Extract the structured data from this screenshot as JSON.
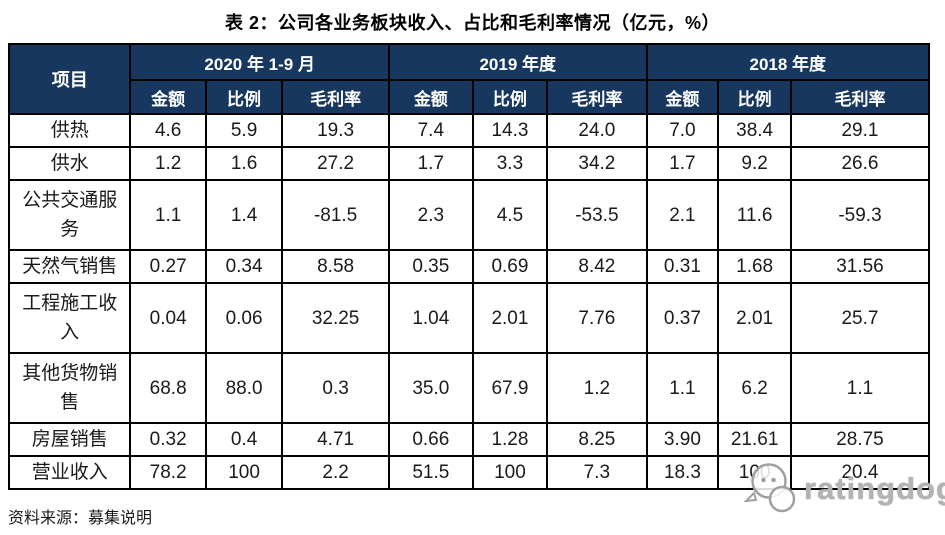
{
  "title": "表 2：公司各业务板块收入、占比和毛利率情况（亿元，%）",
  "table": {
    "corner_label": "项目",
    "groups": [
      {
        "label": "2020 年 1-9 月",
        "columns": [
          "金额",
          "比例",
          "毛利率"
        ]
      },
      {
        "label": "2019 年度",
        "columns": [
          "金额",
          "比例",
          "毛利率"
        ]
      },
      {
        "label": "2018 年度",
        "columns": [
          "金额",
          "比例",
          "毛利率"
        ]
      }
    ],
    "rows": [
      {
        "label": "供热",
        "values": [
          "4.6",
          "5.9",
          "19.3",
          "7.4",
          "14.3",
          "24.0",
          "7.0",
          "38.4",
          "29.1"
        ]
      },
      {
        "label": "供水",
        "values": [
          "1.2",
          "1.6",
          "27.2",
          "1.7",
          "3.3",
          "34.2",
          "1.7",
          "9.2",
          "26.6"
        ]
      },
      {
        "label": "公共交通服务",
        "values": [
          "1.1",
          "1.4",
          "-81.5",
          "2.3",
          "4.5",
          "-53.5",
          "2.1",
          "11.6",
          "-59.3"
        ]
      },
      {
        "label": "天然气销售",
        "values": [
          "0.27",
          "0.34",
          "8.58",
          "0.35",
          "0.69",
          "8.42",
          "0.31",
          "1.68",
          "31.56"
        ]
      },
      {
        "label": "工程施工收入",
        "values": [
          "0.04",
          "0.06",
          "32.25",
          "1.04",
          "2.01",
          "7.76",
          "0.37",
          "2.01",
          "25.7"
        ]
      },
      {
        "label": "其他货物销售",
        "values": [
          "68.8",
          "88.0",
          "0.3",
          "35.0",
          "67.9",
          "1.2",
          "1.1",
          "6.2",
          "1.1"
        ]
      },
      {
        "label": "房屋销售",
        "values": [
          "0.32",
          "0.4",
          "4.71",
          "0.66",
          "1.28",
          "8.25",
          "3.90",
          "21.61",
          "28.75"
        ]
      },
      {
        "label": "营业收入",
        "values": [
          "78.2",
          "100",
          "2.2",
          "51.5",
          "100",
          "7.3",
          "18.3",
          "100",
          "20.4"
        ]
      }
    ]
  },
  "source_note": "资料来源：募集说明",
  "watermark": {
    "text": "ratingdog",
    "icon": "dog-face-icon"
  },
  "colors": {
    "header_bg": "#17375E",
    "header_text": "#FFFFFF",
    "border": "#000000",
    "body_text": "#1A1A1A",
    "watermark": "#B3B3B3"
  }
}
